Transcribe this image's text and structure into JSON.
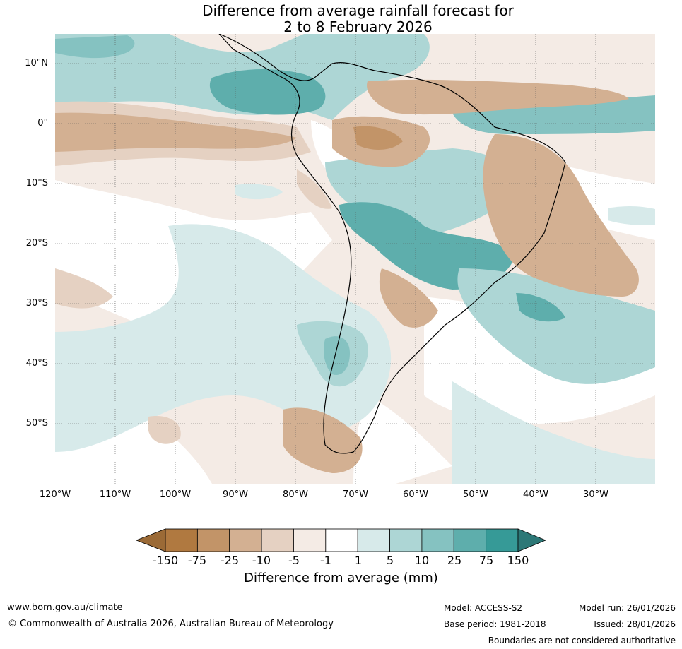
{
  "title_line1": "Difference from average rainfall forecast for",
  "title_line2": "2 to 8 February 2026",
  "latitude_labels": [
    "10°N",
    "0°",
    "10°S",
    "20°S",
    "30°S",
    "40°S",
    "50°S"
  ],
  "longitude_labels": [
    "120°W",
    "110°W",
    "100°W",
    "90°W",
    "80°W",
    "70°W",
    "60°W",
    "50°W",
    "40°W",
    "30°W"
  ],
  "colorbar": {
    "tick_labels": [
      "-150",
      "-75",
      "-25",
      "-10",
      "-5",
      "-1",
      "1",
      "5",
      "10",
      "25",
      "75",
      "150"
    ],
    "colors": [
      "#b07940",
      "#c29468",
      "#d3b092",
      "#e5d1c2",
      "#f4ebe5",
      "#ffffff",
      "#d7eaea",
      "#add6d5",
      "#85c2c1",
      "#5eaeac",
      "#369a97"
    ],
    "extend_low_color": "#9b6a36",
    "extend_high_color": "#2d7877",
    "title": "Difference from average (mm)"
  },
  "footer": {
    "website": "www.bom.gov.au/climate",
    "copyright": "© Commonwealth of Australia 2026, Australian Bureau of Meteorology",
    "model": "Model: ACCESS-S2",
    "base_period": "Base period: 1981-2018",
    "model_run": "Model run: 26/01/2026",
    "issued": "Issued: 28/01/2026",
    "disclaimer": "Boundaries are not considered authoritative"
  }
}
